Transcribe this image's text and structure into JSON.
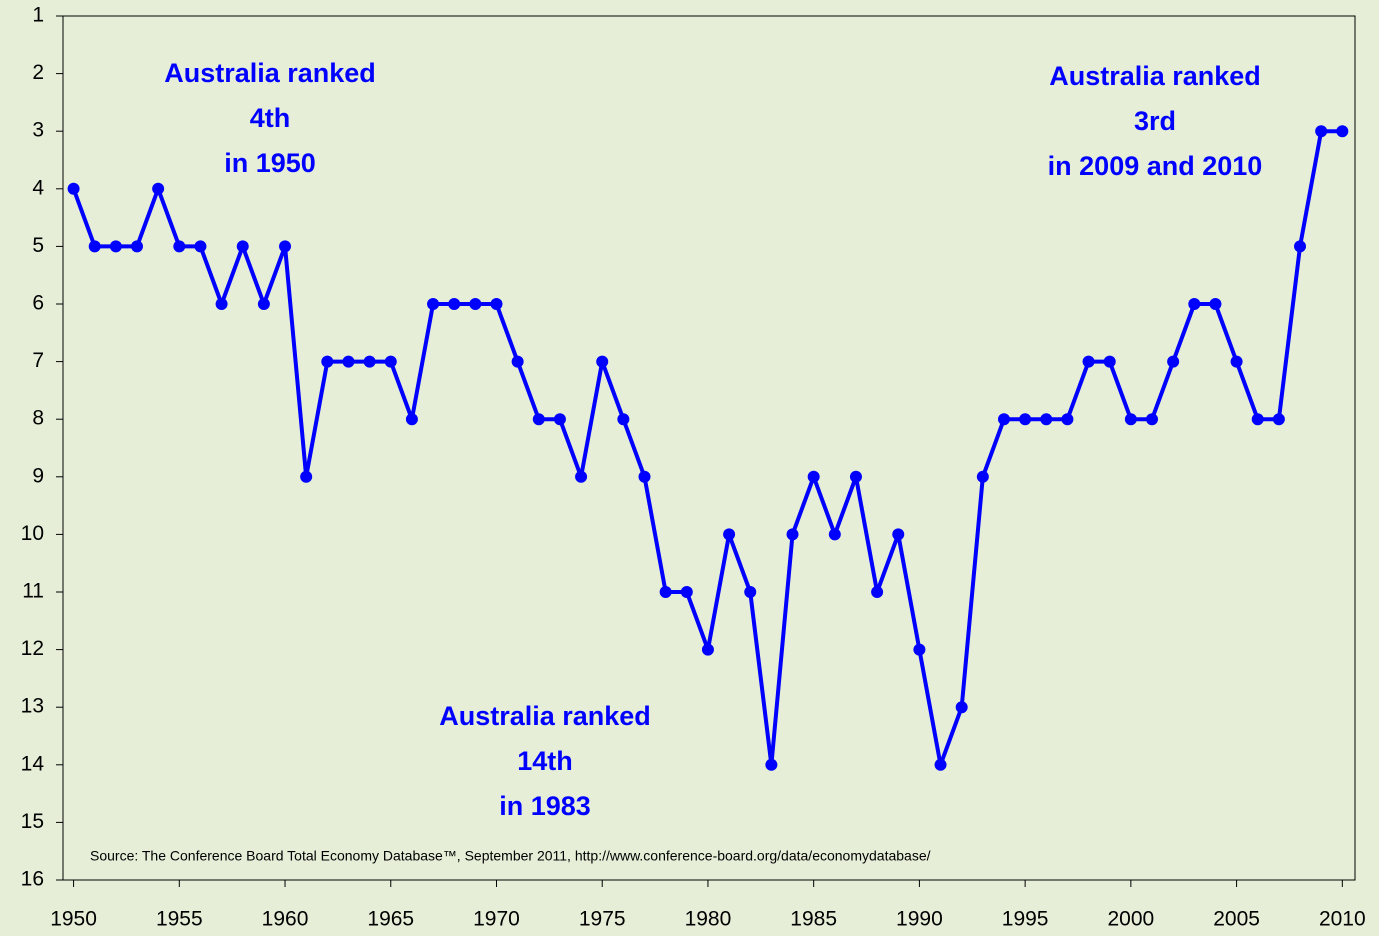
{
  "chart_data": {
    "type": "line",
    "x": [
      1950,
      1951,
      1952,
      1953,
      1954,
      1955,
      1956,
      1957,
      1958,
      1959,
      1960,
      1961,
      1962,
      1963,
      1964,
      1965,
      1966,
      1967,
      1968,
      1969,
      1970,
      1971,
      1972,
      1973,
      1974,
      1975,
      1976,
      1977,
      1978,
      1979,
      1980,
      1981,
      1982,
      1983,
      1984,
      1985,
      1986,
      1987,
      1988,
      1989,
      1990,
      1991,
      1992,
      1993,
      1994,
      1995,
      1996,
      1997,
      1998,
      1999,
      2000,
      2001,
      2002,
      2003,
      2004,
      2005,
      2006,
      2007,
      2008,
      2009,
      2010
    ],
    "series": [
      {
        "color": "#0000ff",
        "values": [
          4,
          5,
          5,
          5,
          4,
          5,
          5,
          6,
          5,
          6,
          5,
          9,
          7,
          7,
          7,
          7,
          8,
          6,
          6,
          6,
          6,
          7,
          8,
          8,
          9,
          7,
          8,
          9,
          11,
          11,
          12,
          10,
          11,
          14,
          10,
          9,
          10,
          9,
          11,
          10,
          12,
          14,
          13,
          9,
          8,
          8,
          8,
          8,
          7,
          7,
          8,
          8,
          7,
          6,
          6,
          7,
          8,
          8,
          5,
          3,
          3
        ]
      }
    ],
    "xlim": [
      1949.5,
      2010.6
    ],
    "xticks": [
      1950,
      1955,
      1960,
      1965,
      1970,
      1975,
      1980,
      1985,
      1990,
      1995,
      2000,
      2005,
      2010
    ],
    "ylim": [
      1,
      16
    ],
    "y_reversed": true,
    "yticks": [
      1,
      2,
      3,
      4,
      5,
      6,
      7,
      8,
      9,
      10,
      11,
      12,
      13,
      14,
      15,
      16
    ],
    "annotations": [
      {
        "lines": [
          "Australia ranked",
          "4th",
          "in 1950"
        ]
      },
      {
        "lines": [
          "Australia ranked",
          "14th",
          "in 1983"
        ]
      },
      {
        "lines": [
          "Australia ranked",
          "3rd",
          "in 2009 and 2010"
        ]
      }
    ],
    "source": "Source: The Conference Board Total Economy Database™, September 2011, http://www.conference-board.org/data/economydatabase/"
  }
}
